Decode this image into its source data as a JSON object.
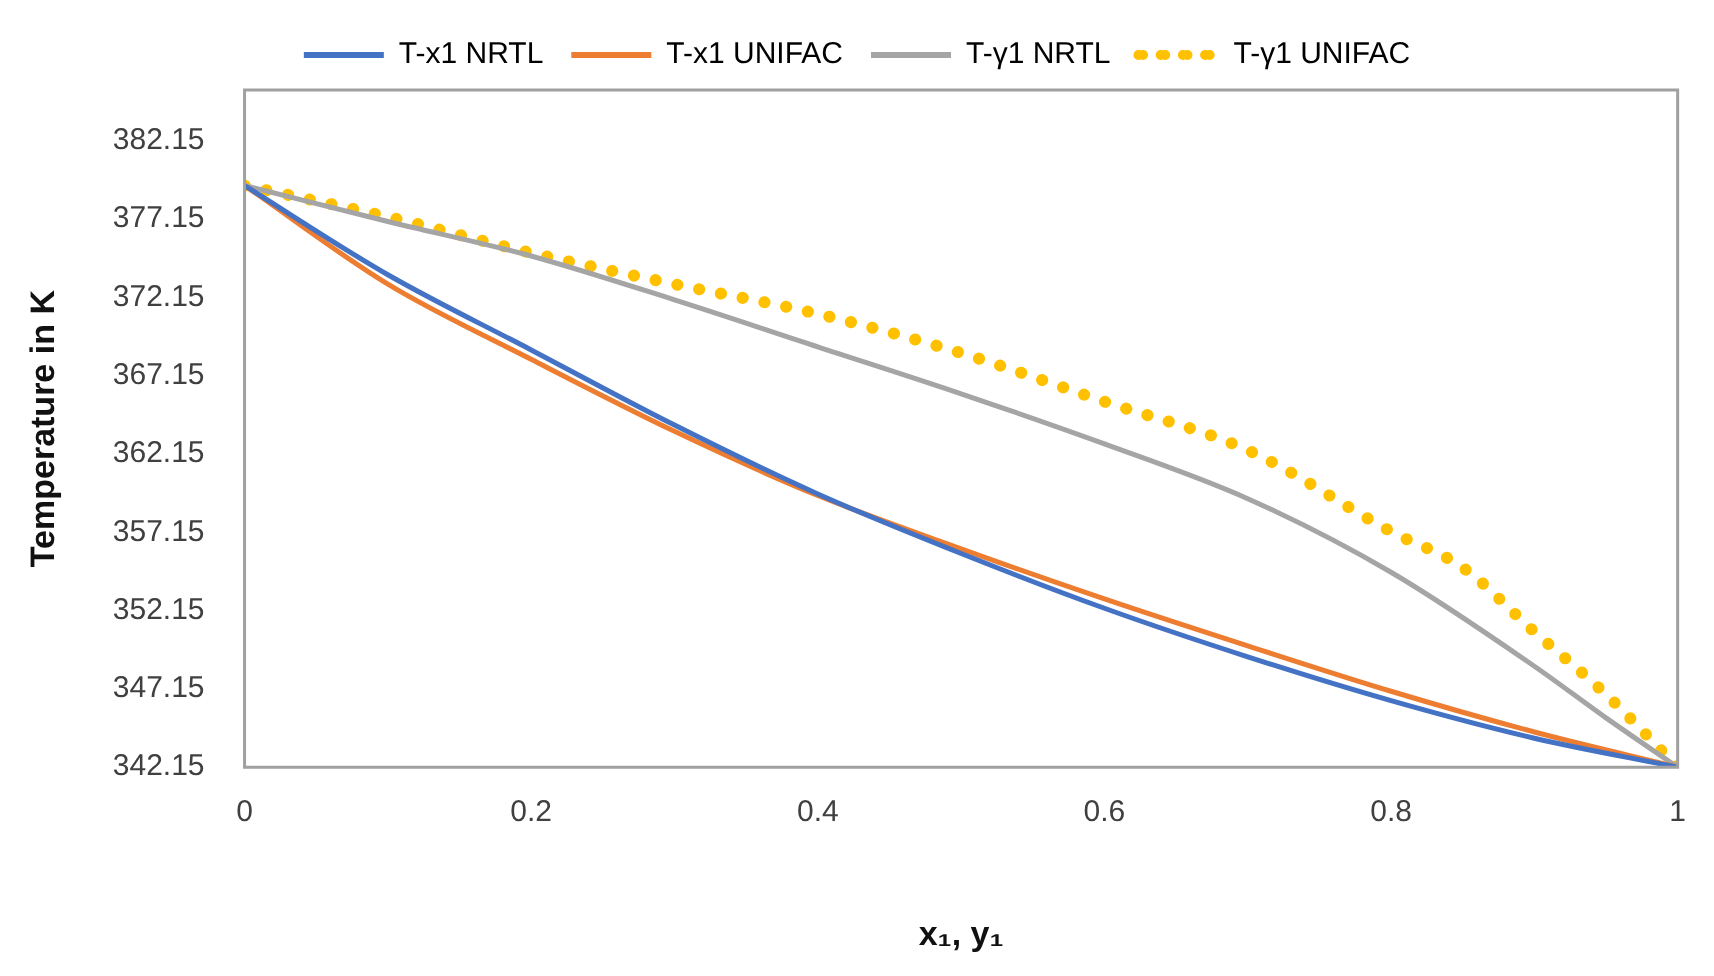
{
  "chart_data": {
    "type": "line",
    "xlabel": "x₁, y₁",
    "ylabel": "Temperature in K",
    "xlim": [
      0,
      1
    ],
    "xticks": [
      0,
      0.2,
      0.4,
      0.6,
      0.8,
      1
    ],
    "ylim": [
      342.15,
      385.4
    ],
    "yticks": [
      342.15,
      347.15,
      352.15,
      357.15,
      362.15,
      367.15,
      372.15,
      377.15,
      382.15
    ],
    "grid": false,
    "legend": "top",
    "marker": "none",
    "series": [
      {
        "name": "T-x1 NRTL",
        "color": "#4472c4",
        "line_style": "solid",
        "x": [
          0,
          0.1,
          0.2,
          0.3,
          0.4,
          0.5,
          0.6,
          0.7,
          0.8,
          0.9,
          1
        ],
        "values": [
          379.3,
          373.6,
          368.8,
          364.0,
          359.6,
          355.8,
          352.3,
          349.2,
          346.4,
          344.0,
          342.15
        ]
      },
      {
        "name": "T-x1 UNIFAC",
        "color": "#ed7d31",
        "line_style": "solid",
        "x": [
          0,
          0.1,
          0.2,
          0.3,
          0.4,
          0.5,
          0.6,
          0.7,
          0.8,
          0.9,
          1
        ],
        "values": [
          379.3,
          373.0,
          368.2,
          363.6,
          359.5,
          356.1,
          352.9,
          349.9,
          347.0,
          344.4,
          342.15
        ]
      },
      {
        "name": "T-γ1 NRTL",
        "color": "#a5a5a5",
        "line_style": "solid",
        "x": [
          0,
          0.1,
          0.2,
          0.3,
          0.4,
          0.5,
          0.6,
          0.7,
          0.8,
          0.9,
          0.95,
          1
        ],
        "values": [
          379.3,
          377.0,
          374.8,
          372.0,
          369.0,
          366.0,
          362.8,
          359.3,
          354.6,
          348.6,
          345.3,
          342.15
        ]
      },
      {
        "name": "T-γ1 UNIFAC",
        "color": "#ffc000",
        "line_style": "dotted",
        "x": [
          0,
          0.1,
          0.2,
          0.3,
          0.4,
          0.5,
          0.6,
          0.7,
          0.8,
          0.85,
          0.9,
          0.95,
          1
        ],
        "values": [
          379.3,
          377.3,
          375.0,
          373.0,
          371.1,
          368.6,
          365.5,
          362.4,
          357.2,
          354.9,
          350.8,
          346.8,
          342.15
        ]
      }
    ]
  }
}
